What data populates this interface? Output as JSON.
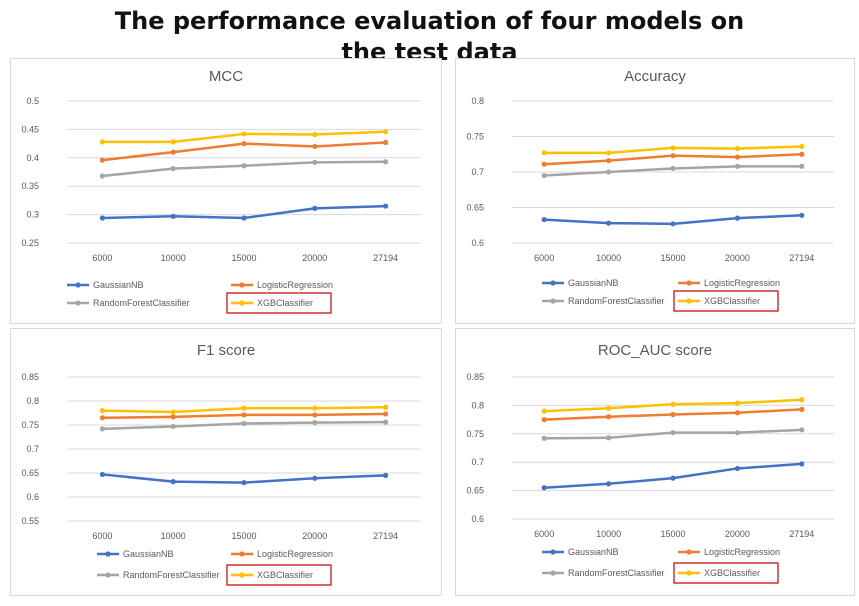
{
  "page": {
    "title_line1": "The performance evaluation of four models on",
    "title_line2": "the test data"
  },
  "colors": {
    "GaussianNB": "#4472c4",
    "LogisticRegression": "#ed7d31",
    "RandomForestClassifier": "#a5a5a5",
    "XGBClassifier": "#ffc000",
    "highlight_box": "#c00000",
    "grid": "#d9d9d9"
  },
  "chart_data": [
    {
      "type": "line",
      "title": "MCC",
      "categories": [
        "6000",
        "10000",
        "15000",
        "20000",
        "27194"
      ],
      "ylim": [
        0.25,
        0.5
      ],
      "yticks": [
        "0.25",
        "0.3",
        "0.35",
        "0.4",
        "0.45",
        "0.5"
      ],
      "grid": true,
      "legend": "bottom",
      "series": [
        {
          "name": "GaussianNB",
          "values": [
            0.294,
            0.297,
            0.294,
            0.311,
            0.315
          ]
        },
        {
          "name": "LogisticRegression",
          "values": [
            0.396,
            0.41,
            0.425,
            0.42,
            0.427
          ]
        },
        {
          "name": "RandomForestClassifier",
          "values": [
            0.368,
            0.381,
            0.386,
            0.392,
            0.393
          ]
        },
        {
          "name": "XGBClassifier",
          "values": [
            0.428,
            0.428,
            0.442,
            0.441,
            0.446
          ]
        }
      ],
      "highlighted_series": "XGBClassifier"
    },
    {
      "type": "line",
      "title": "Accuracy",
      "categories": [
        "6000",
        "10000",
        "15000",
        "20000",
        "27194"
      ],
      "ylim": [
        0.6,
        0.8
      ],
      "yticks": [
        "0.6",
        "0.65",
        "0.7",
        "0.75",
        "0.8"
      ],
      "grid": true,
      "legend": "bottom",
      "series": [
        {
          "name": "GaussianNB",
          "values": [
            0.633,
            0.628,
            0.627,
            0.635,
            0.639
          ]
        },
        {
          "name": "LogisticRegression",
          "values": [
            0.711,
            0.716,
            0.723,
            0.721,
            0.725
          ]
        },
        {
          "name": "RandomForestClassifier",
          "values": [
            0.695,
            0.7,
            0.705,
            0.708,
            0.708
          ]
        },
        {
          "name": "XGBClassifier",
          "values": [
            0.727,
            0.727,
            0.734,
            0.733,
            0.736
          ]
        }
      ],
      "highlighted_series": "XGBClassifier"
    },
    {
      "type": "line",
      "title": "F1 score",
      "categories": [
        "6000",
        "10000",
        "15000",
        "20000",
        "27194"
      ],
      "ylim": [
        0.55,
        0.85
      ],
      "yticks": [
        "0.55",
        "0.6",
        "0.65",
        "0.7",
        "0.75",
        "0.8",
        "0.85"
      ],
      "grid": true,
      "legend": "bottom",
      "series": [
        {
          "name": "GaussianNB",
          "values": [
            0.647,
            0.632,
            0.63,
            0.639,
            0.645
          ]
        },
        {
          "name": "LogisticRegression",
          "values": [
            0.765,
            0.767,
            0.771,
            0.771,
            0.773
          ]
        },
        {
          "name": "RandomForestClassifier",
          "values": [
            0.742,
            0.747,
            0.753,
            0.755,
            0.756
          ]
        },
        {
          "name": "XGBClassifier",
          "values": [
            0.78,
            0.777,
            0.785,
            0.785,
            0.787
          ]
        }
      ],
      "highlighted_series": "XGBClassifier"
    },
    {
      "type": "line",
      "title": "ROC_AUC score",
      "categories": [
        "6000",
        "10000",
        "15000",
        "20000",
        "27194"
      ],
      "ylim": [
        0.6,
        0.85
      ],
      "yticks": [
        "0.6",
        "0.65",
        "0.7",
        "0.75",
        "0.8",
        "0.85"
      ],
      "grid": true,
      "legend": "bottom",
      "series": [
        {
          "name": "GaussianNB",
          "values": [
            0.655,
            0.662,
            0.672,
            0.689,
            0.697
          ]
        },
        {
          "name": "LogisticRegression",
          "values": [
            0.775,
            0.78,
            0.784,
            0.787,
            0.793
          ]
        },
        {
          "name": "RandomForestClassifier",
          "values": [
            0.742,
            0.743,
            0.752,
            0.752,
            0.757
          ]
        },
        {
          "name": "XGBClassifier",
          "values": [
            0.79,
            0.795,
            0.802,
            0.804,
            0.81
          ]
        }
      ],
      "highlighted_series": "XGBClassifier"
    }
  ]
}
